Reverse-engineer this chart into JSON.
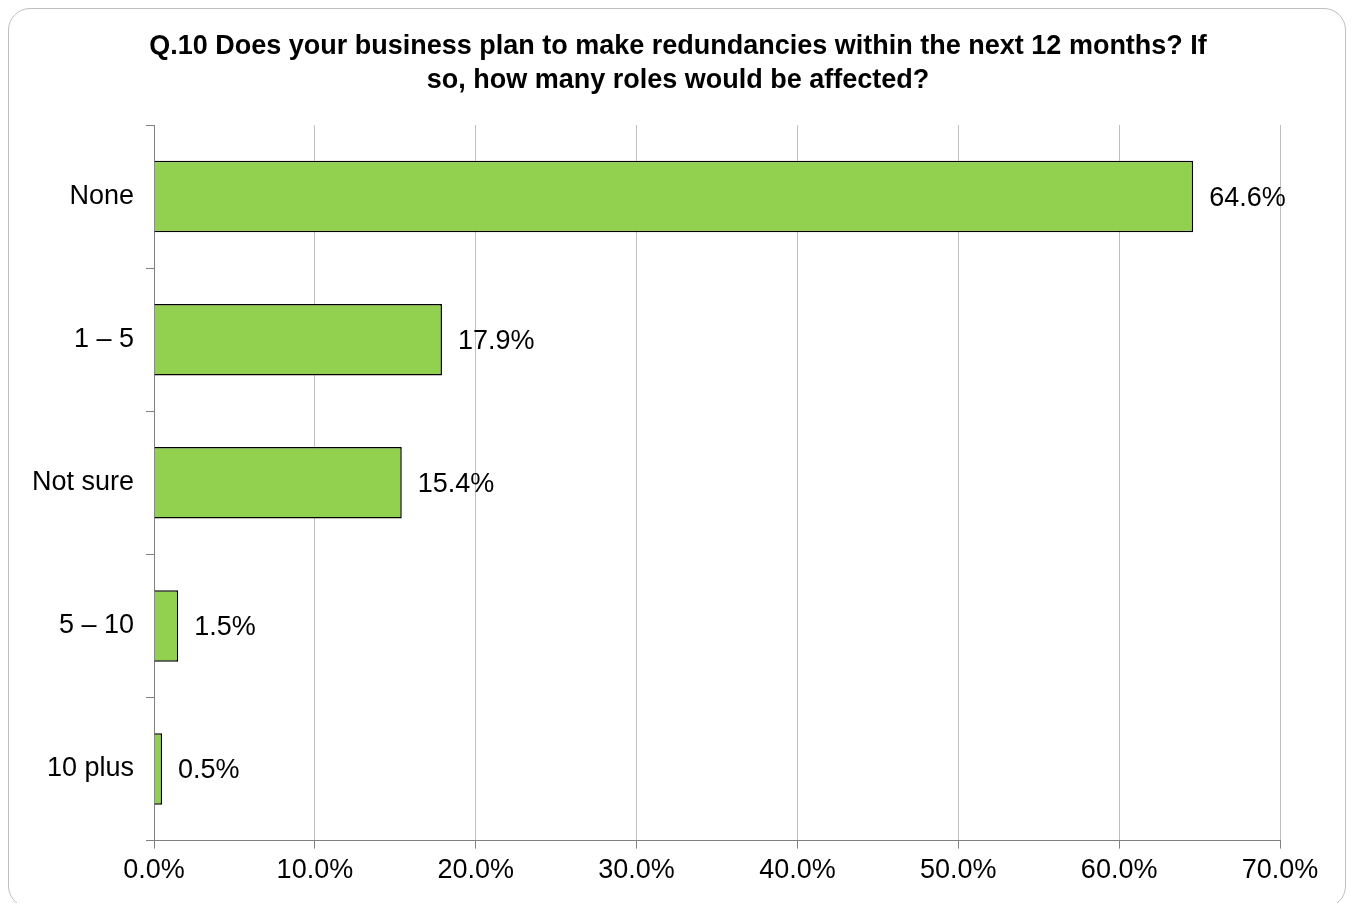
{
  "chart_data": {
    "type": "bar",
    "orientation": "horizontal",
    "title": "Q.10 Does your business plan to make redundancies within the next 12 months? If so, how many roles would be affected?",
    "categories": [
      "None",
      "1 – 5",
      "Not sure",
      "5 – 10",
      "10 plus"
    ],
    "values": [
      64.6,
      17.9,
      15.4,
      1.5,
      0.5
    ],
    "value_labels": [
      "64.6%",
      "17.9%",
      "15.4%",
      "1.5%",
      "0.5%"
    ],
    "color": "#92d050",
    "xlim": [
      0,
      70
    ],
    "xticks": [
      {
        "value": 0,
        "label": "0.0%"
      },
      {
        "value": 10,
        "label": "10.0%"
      },
      {
        "value": 20,
        "label": "20.0%"
      },
      {
        "value": 30,
        "label": "30.0%"
      },
      {
        "value": 40,
        "label": "40.0%"
      },
      {
        "value": 50,
        "label": "50.0%"
      },
      {
        "value": 60,
        "label": "60.0%"
      },
      {
        "value": 70,
        "label": "70.0%"
      }
    ],
    "grid": "x",
    "legend": false
  }
}
